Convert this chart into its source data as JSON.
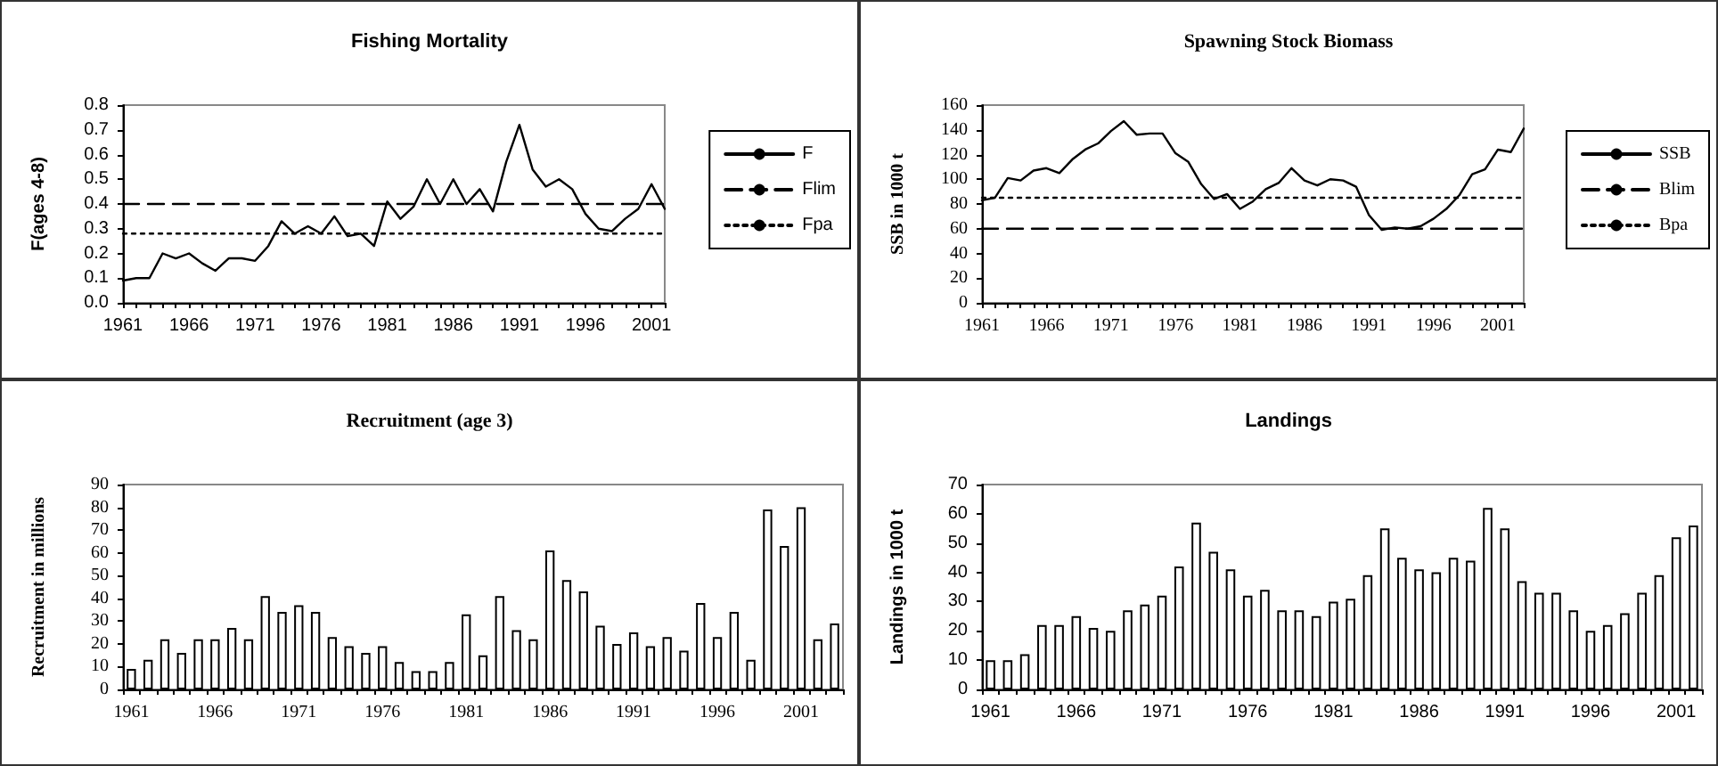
{
  "chart_data": [
    {
      "type": "line",
      "title": "Fishing Mortality",
      "ylabel": "F(ages 4-8)",
      "categories": [
        "1961",
        null,
        null,
        null,
        null,
        "1966",
        null,
        null,
        null,
        null,
        "1971",
        null,
        null,
        null,
        null,
        "1976",
        null,
        null,
        null,
        null,
        "1981",
        null,
        null,
        null,
        null,
        "1986",
        null,
        null,
        null,
        null,
        "1991",
        null,
        null,
        null,
        null,
        "1996",
        null,
        null,
        null,
        null,
        "2001",
        null
      ],
      "series": [
        {
          "name": "F",
          "color": "#000000",
          "line_style": "solid",
          "values": [
            0.09,
            0.1,
            0.1,
            0.2,
            0.18,
            0.2,
            0.16,
            0.13,
            0.18,
            0.18,
            0.17,
            0.23,
            0.33,
            0.28,
            0.31,
            0.28,
            0.35,
            0.27,
            0.28,
            0.23,
            0.41,
            0.34,
            0.39,
            0.5,
            0.4,
            0.5,
            0.4,
            0.46,
            0.37,
            0.57,
            0.72,
            0.54,
            0.47,
            0.5,
            0.46,
            0.36,
            0.3,
            0.29,
            0.34,
            0.38,
            0.48,
            0.38
          ]
        },
        {
          "name": "Flim",
          "color": "#000000",
          "line_style": "dashed",
          "values": [
            0.4,
            0.4,
            0.4,
            0.4,
            0.4,
            0.4,
            0.4,
            0.4,
            0.4,
            0.4,
            0.4,
            0.4,
            0.4,
            0.4,
            0.4,
            0.4,
            0.4,
            0.4,
            0.4,
            0.4,
            0.4,
            0.4,
            0.4,
            0.4,
            0.4,
            0.4,
            0.4,
            0.4,
            0.4,
            0.4,
            0.4,
            0.4,
            0.4,
            0.4,
            0.4,
            0.4,
            0.4,
            0.4,
            0.4,
            0.4,
            0.4,
            0.4
          ]
        },
        {
          "name": "Fpa",
          "color": "#000000",
          "line_style": "dotted",
          "values": [
            0.28,
            0.28,
            0.28,
            0.28,
            0.28,
            0.28,
            0.28,
            0.28,
            0.28,
            0.28,
            0.28,
            0.28,
            0.28,
            0.28,
            0.28,
            0.28,
            0.28,
            0.28,
            0.28,
            0.28,
            0.28,
            0.28,
            0.28,
            0.28,
            0.28,
            0.28,
            0.28,
            0.28,
            0.28,
            0.28,
            0.28,
            0.28,
            0.28,
            0.28,
            0.28,
            0.28,
            0.28,
            0.28,
            0.28,
            0.28,
            0.28,
            0.28
          ]
        }
      ],
      "ylim": [
        0,
        0.8
      ],
      "yticks": [
        {
          "value": 0,
          "label": "0.0"
        },
        {
          "value": 0.1,
          "label": "0.1"
        },
        {
          "value": 0.2,
          "label": "0.2"
        },
        {
          "value": 0.3,
          "label": "0.3"
        },
        {
          "value": 0.4,
          "label": "0.4"
        },
        {
          "value": 0.5,
          "label": "0.5"
        },
        {
          "value": 0.6,
          "label": "0.6"
        },
        {
          "value": 0.7,
          "label": "0.7"
        },
        {
          "value": 0.8,
          "label": "0.8"
        }
      ],
      "grid": false,
      "legend": "right",
      "marker": "none"
    },
    {
      "type": "line",
      "title": "Spawning Stock Biomass",
      "ylabel": "SSB in 1000 t",
      "categories": [
        "1961",
        null,
        null,
        null,
        null,
        "1966",
        null,
        null,
        null,
        null,
        "1971",
        null,
        null,
        null,
        null,
        "1976",
        null,
        null,
        null,
        null,
        "1981",
        null,
        null,
        null,
        null,
        "1986",
        null,
        null,
        null,
        null,
        "1991",
        null,
        null,
        null,
        null,
        "1996",
        null,
        null,
        null,
        null,
        "2001",
        null,
        null
      ],
      "series": [
        {
          "name": "SSB",
          "color": "#000000",
          "line_style": "solid",
          "values": [
            83,
            85,
            101,
            99,
            107,
            109,
            105,
            116,
            124,
            129,
            139,
            147,
            136,
            137,
            137,
            121,
            114,
            96,
            84,
            88,
            76,
            82,
            92,
            97,
            109,
            99,
            95,
            100,
            99,
            94,
            71,
            59,
            61,
            60,
            62,
            68,
            76,
            87,
            104,
            108,
            124,
            122,
            141
          ]
        },
        {
          "name": "Blim",
          "color": "#000000",
          "line_style": "dashed",
          "values": [
            60,
            60,
            60,
            60,
            60,
            60,
            60,
            60,
            60,
            60,
            60,
            60,
            60,
            60,
            60,
            60,
            60,
            60,
            60,
            60,
            60,
            60,
            60,
            60,
            60,
            60,
            60,
            60,
            60,
            60,
            60,
            60,
            60,
            60,
            60,
            60,
            60,
            60,
            60,
            60,
            60,
            60,
            60
          ]
        },
        {
          "name": "Bpa",
          "color": "#000000",
          "line_style": "dotted",
          "values": [
            85,
            85,
            85,
            85,
            85,
            85,
            85,
            85,
            85,
            85,
            85,
            85,
            85,
            85,
            85,
            85,
            85,
            85,
            85,
            85,
            85,
            85,
            85,
            85,
            85,
            85,
            85,
            85,
            85,
            85,
            85,
            85,
            85,
            85,
            85,
            85,
            85,
            85,
            85,
            85,
            85,
            85,
            85
          ]
        }
      ],
      "ylim": [
        0,
        160
      ],
      "yticks": [
        0,
        20,
        40,
        60,
        80,
        100,
        120,
        140,
        160
      ],
      "grid": false,
      "legend": "right",
      "marker": "none"
    },
    {
      "type": "bar",
      "title": "Recruitment (age 3)",
      "ylabel": "Recruitment in millions",
      "categories": [
        "1961",
        null,
        null,
        null,
        null,
        "1966",
        null,
        null,
        null,
        null,
        "1971",
        null,
        null,
        null,
        null,
        "1976",
        null,
        null,
        null,
        null,
        "1981",
        null,
        null,
        null,
        null,
        "1986",
        null,
        null,
        null,
        null,
        "1991",
        null,
        null,
        null,
        null,
        "1996",
        null,
        null,
        null,
        null,
        "2001",
        null,
        null
      ],
      "values": [
        9,
        13,
        22,
        16,
        22,
        22,
        27,
        22,
        41,
        34,
        37,
        34,
        23,
        19,
        16,
        19,
        12,
        8,
        8,
        12,
        33,
        15,
        41,
        26,
        22,
        61,
        48,
        43,
        28,
        20,
        25,
        19,
        23,
        17,
        38,
        23,
        34,
        13,
        79,
        63,
        80,
        22,
        29
      ],
      "color": "#ffffff",
      "ylim": [
        0,
        90
      ],
      "yticks": [
        0,
        10,
        20,
        30,
        40,
        50,
        60,
        70,
        80,
        90
      ],
      "grid": false
    },
    {
      "type": "bar",
      "title": "Landings",
      "ylabel": "Landings in 1000 t",
      "categories": [
        "1961",
        null,
        null,
        null,
        null,
        "1966",
        null,
        null,
        null,
        null,
        "1971",
        null,
        null,
        null,
        null,
        "1976",
        null,
        null,
        null,
        null,
        "1981",
        null,
        null,
        null,
        null,
        "1986",
        null,
        null,
        null,
        null,
        "1991",
        null,
        null,
        null,
        null,
        "1996",
        null,
        null,
        null,
        null,
        "2001",
        null
      ],
      "values": [
        10,
        10,
        12,
        22,
        22,
        25,
        21,
        20,
        27,
        29,
        32,
        42,
        57,
        47,
        41,
        32,
        34,
        27,
        27,
        25,
        30,
        31,
        39,
        55,
        45,
        41,
        40,
        45,
        44,
        62,
        55,
        37,
        33,
        33,
        27,
        20,
        22,
        26,
        33,
        39,
        52,
        56
      ],
      "color": "#ffffff",
      "ylim": [
        0,
        70
      ],
      "yticks": [
        0,
        10,
        20,
        30,
        40,
        50,
        60,
        70
      ],
      "grid": false
    }
  ]
}
